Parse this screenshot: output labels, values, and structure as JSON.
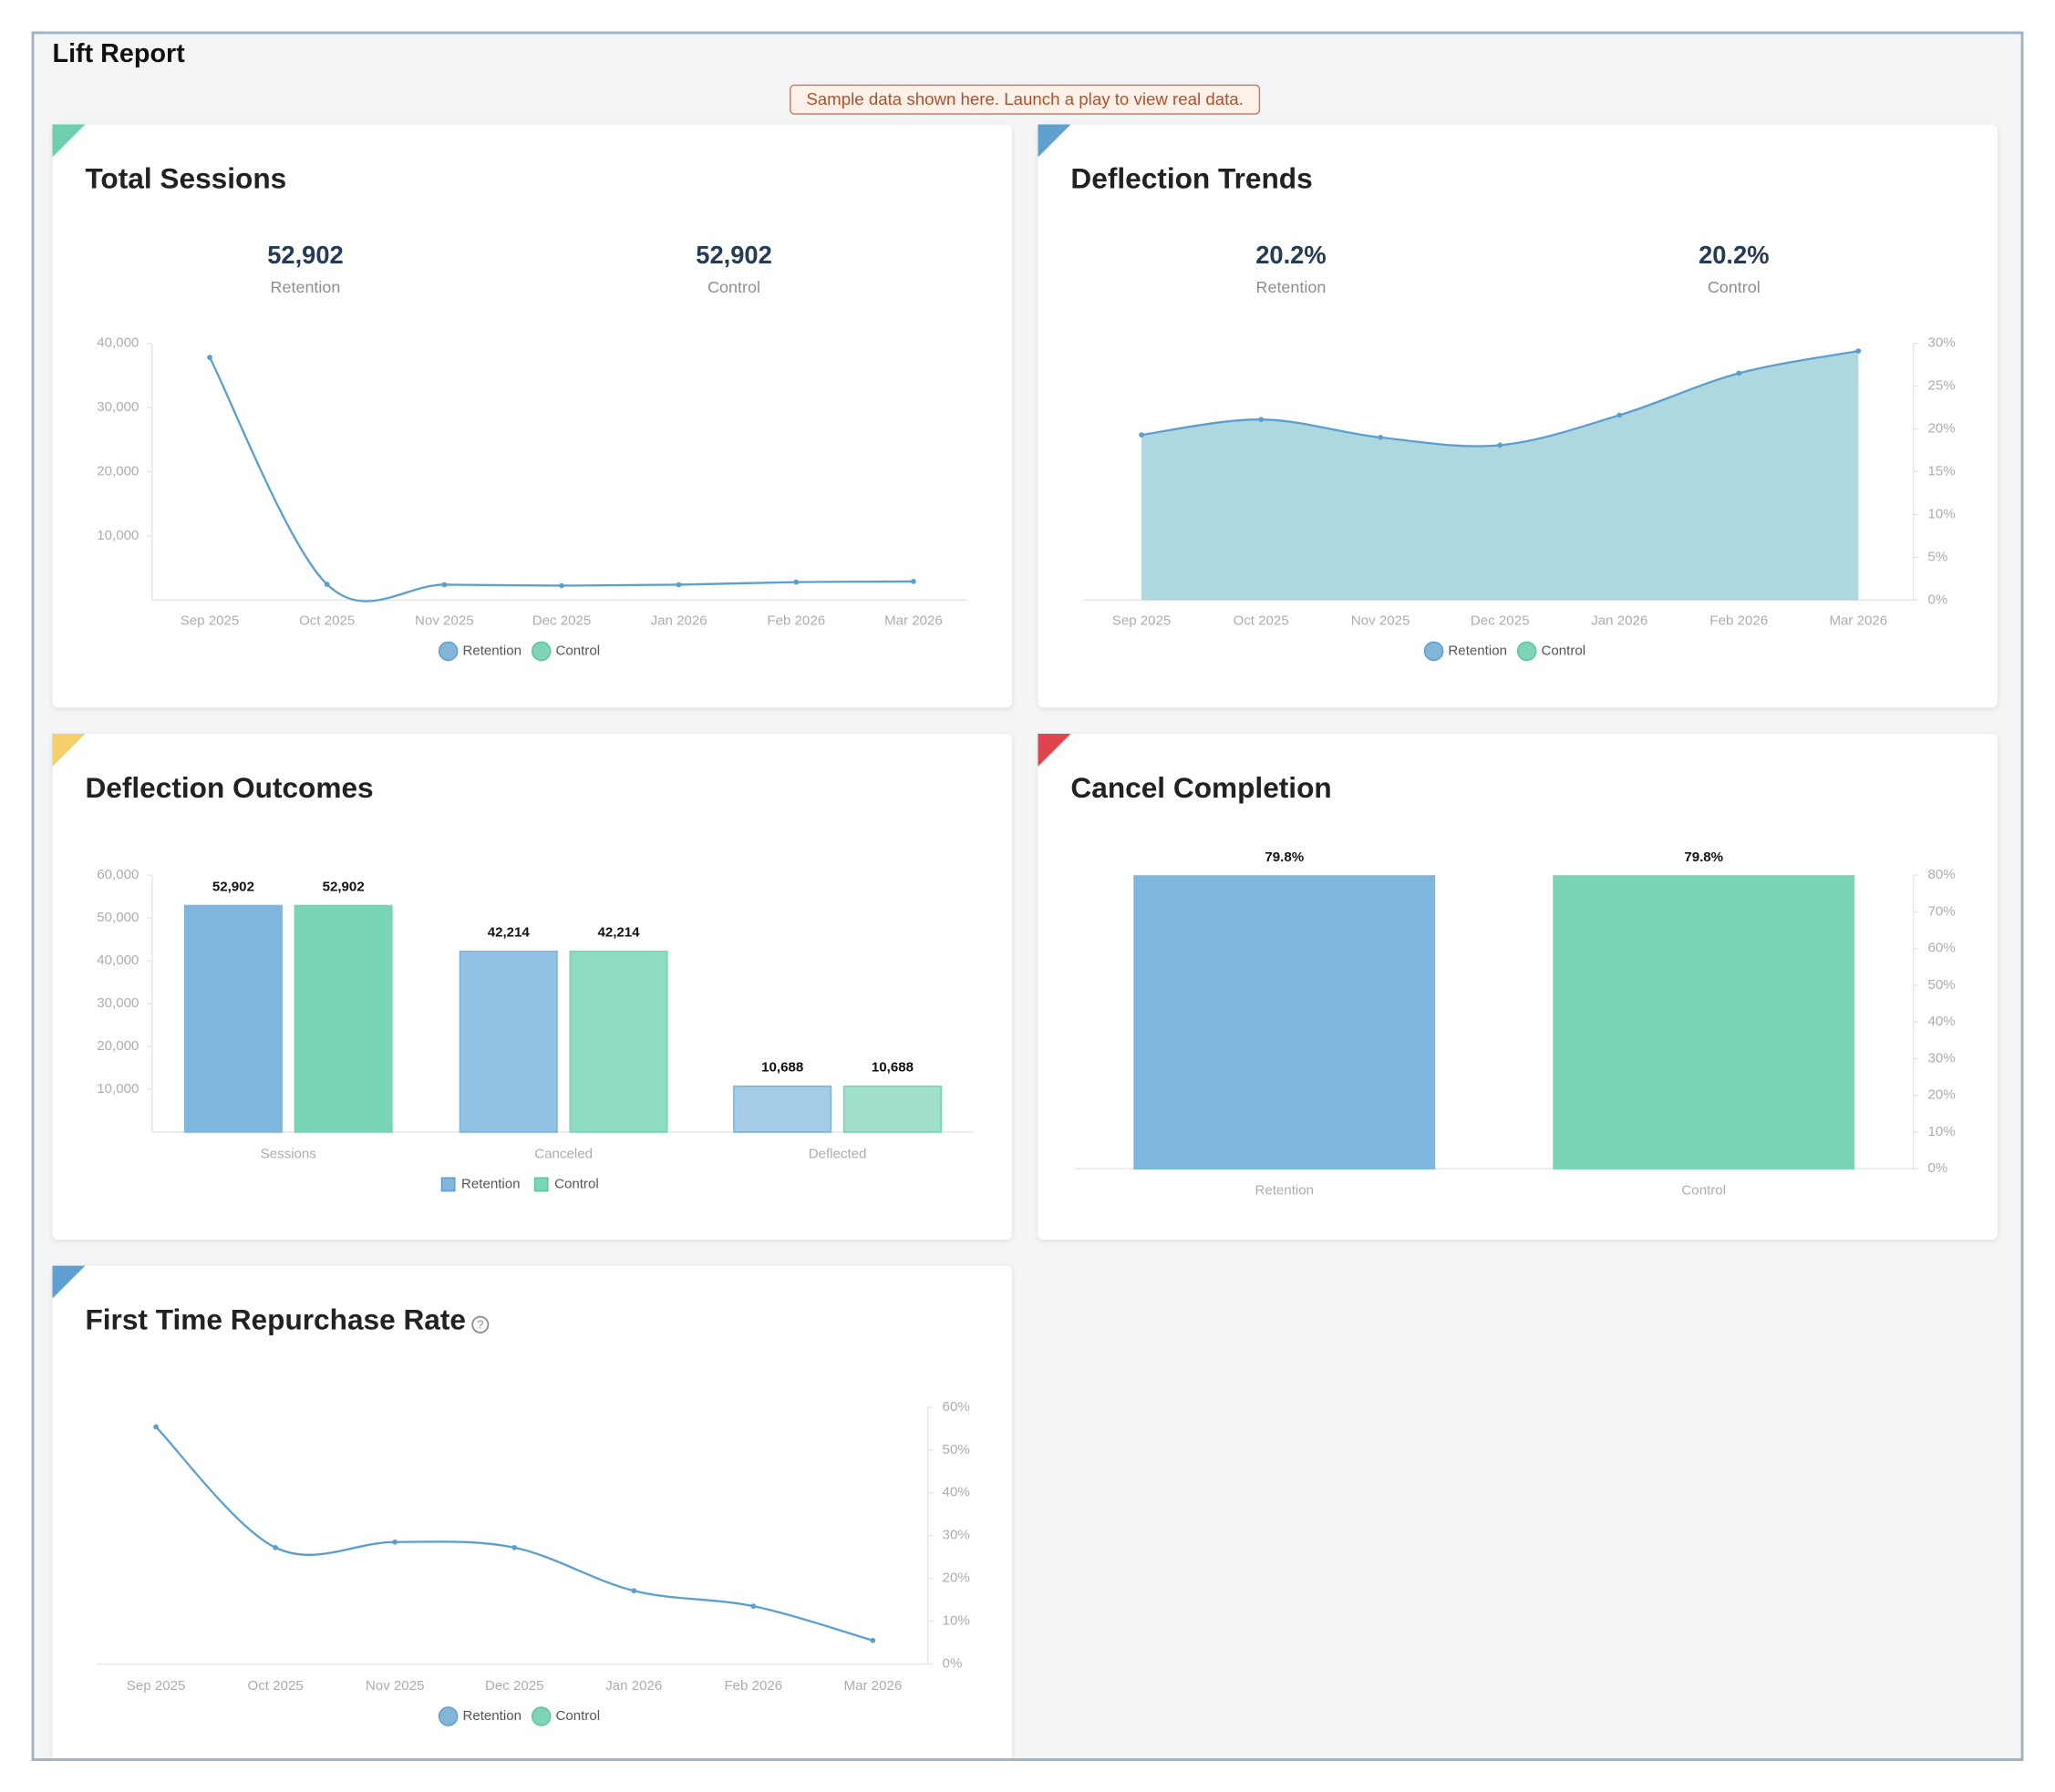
{
  "title": "Lift Report",
  "notice": "Sample data shown here. Launch a play to view real data.",
  "chart_data": [
    {
      "type": "line",
      "title": "Total Sessions",
      "kpis": [
        {
          "value": "52,902",
          "label": "Retention"
        },
        {
          "value": "52,902",
          "label": "Control"
        }
      ],
      "categories": [
        "Sep 2025",
        "Oct 2025",
        "Nov 2025",
        "Dec 2025",
        "Jan 2026",
        "Feb 2026",
        "Mar 2026"
      ],
      "series": [
        {
          "name": "Retention",
          "color": "#5b9fcf",
          "values": [
            37800,
            2450,
            2400,
            2250,
            2400,
            2800,
            2900
          ]
        },
        {
          "name": "Control",
          "color": "#7fd3b7",
          "values": [
            null,
            null,
            null,
            null,
            null,
            null,
            null
          ]
        }
      ],
      "ylim": [
        0,
        40000
      ],
      "yticks": [
        {
          "value": 10000,
          "label": "10,000"
        },
        {
          "value": 20000,
          "label": "20,000"
        },
        {
          "value": 30000,
          "label": "30,000"
        },
        {
          "value": 40000,
          "label": "40,000"
        }
      ],
      "y_axis_side": "left"
    },
    {
      "type": "area",
      "title": "Deflection Trends",
      "kpis": [
        {
          "value": "20.2%",
          "label": "Retention"
        },
        {
          "value": "20.2%",
          "label": "Control"
        }
      ],
      "categories": [
        "Sep 2025",
        "Oct 2025",
        "Nov 2025",
        "Dec 2025",
        "Jan 2026",
        "Feb 2026",
        "Mar 2026"
      ],
      "series": [
        {
          "name": "Retention",
          "color": "#5b9fcf",
          "fill": "#aed8df",
          "values": [
            19.3,
            21.1,
            19.0,
            18.1,
            21.6,
            26.5,
            29.1
          ]
        },
        {
          "name": "Control",
          "color": "#7fd3b7",
          "values": [
            null,
            null,
            null,
            null,
            null,
            null,
            null
          ]
        }
      ],
      "ylim": [
        0,
        30
      ],
      "yticks": [
        {
          "value": 0,
          "label": "0%"
        },
        {
          "value": 5,
          "label": "5%"
        },
        {
          "value": 10,
          "label": "10%"
        },
        {
          "value": 15,
          "label": "15%"
        },
        {
          "value": 20,
          "label": "20%"
        },
        {
          "value": 25,
          "label": "25%"
        },
        {
          "value": 30,
          "label": "30%"
        }
      ],
      "y_axis_side": "right"
    },
    {
      "type": "bar",
      "title": "Deflection Outcomes",
      "categories": [
        "Sessions",
        "Canceled",
        "Deflected"
      ],
      "series": [
        {
          "name": "Retention",
          "color": "#83b5d9",
          "values": [
            52902,
            42214,
            10688
          ],
          "value_labels": [
            "52,902",
            "42,214",
            "10,688"
          ]
        },
        {
          "name": "Control",
          "color": "#7fd3b7",
          "values": [
            52902,
            42214,
            10688
          ],
          "value_labels": [
            "52,902",
            "42,214",
            "10,688"
          ]
        }
      ],
      "ylim": [
        0,
        60000
      ],
      "yticks": [
        {
          "value": 10000,
          "label": "10,000"
        },
        {
          "value": 20000,
          "label": "20,000"
        },
        {
          "value": 30000,
          "label": "30,000"
        },
        {
          "value": 40000,
          "label": "40,000"
        },
        {
          "value": 50000,
          "label": "50,000"
        },
        {
          "value": 60000,
          "label": "60,000"
        }
      ],
      "y_axis_side": "left"
    },
    {
      "type": "bar",
      "title": "Cancel Completion",
      "categories": [
        "Retention",
        "Control"
      ],
      "values": [
        79.8,
        79.8
      ],
      "value_labels": [
        "79.8%",
        "79.8%"
      ],
      "colors": [
        "#83b5d9",
        "#7fd3b7"
      ],
      "ylim": [
        0,
        80
      ],
      "yticks": [
        {
          "value": 0,
          "label": "0%"
        },
        {
          "value": 10,
          "label": "10%"
        },
        {
          "value": 20,
          "label": "20%"
        },
        {
          "value": 30,
          "label": "30%"
        },
        {
          "value": 40,
          "label": "40%"
        },
        {
          "value": 50,
          "label": "50%"
        },
        {
          "value": 60,
          "label": "60%"
        },
        {
          "value": 70,
          "label": "70%"
        },
        {
          "value": 80,
          "label": "80%"
        }
      ],
      "y_axis_side": "right"
    },
    {
      "type": "line",
      "title": "First Time Repurchase Rate",
      "categories": [
        "Sep 2025",
        "Oct 2025",
        "Nov 2025",
        "Dec 2025",
        "Jan 2026",
        "Feb 2026",
        "Mar 2026"
      ],
      "series": [
        {
          "name": "Retention",
          "color": "#5b9fcf",
          "values": [
            55.4,
            27.2,
            28.5,
            27.2,
            17.1,
            13.5,
            5.5
          ]
        },
        {
          "name": "Control",
          "color": "#7fd3b7",
          "values": [
            null,
            null,
            null,
            null,
            null,
            null,
            null
          ]
        }
      ],
      "ylim": [
        0,
        60
      ],
      "yticks": [
        {
          "value": 0,
          "label": "0%"
        },
        {
          "value": 10,
          "label": "10%"
        },
        {
          "value": 20,
          "label": "20%"
        },
        {
          "value": 30,
          "label": "30%"
        },
        {
          "value": 40,
          "label": "40%"
        },
        {
          "value": 50,
          "label": "50%"
        },
        {
          "value": 60,
          "label": "60%"
        }
      ],
      "y_axis_side": "right"
    }
  ]
}
